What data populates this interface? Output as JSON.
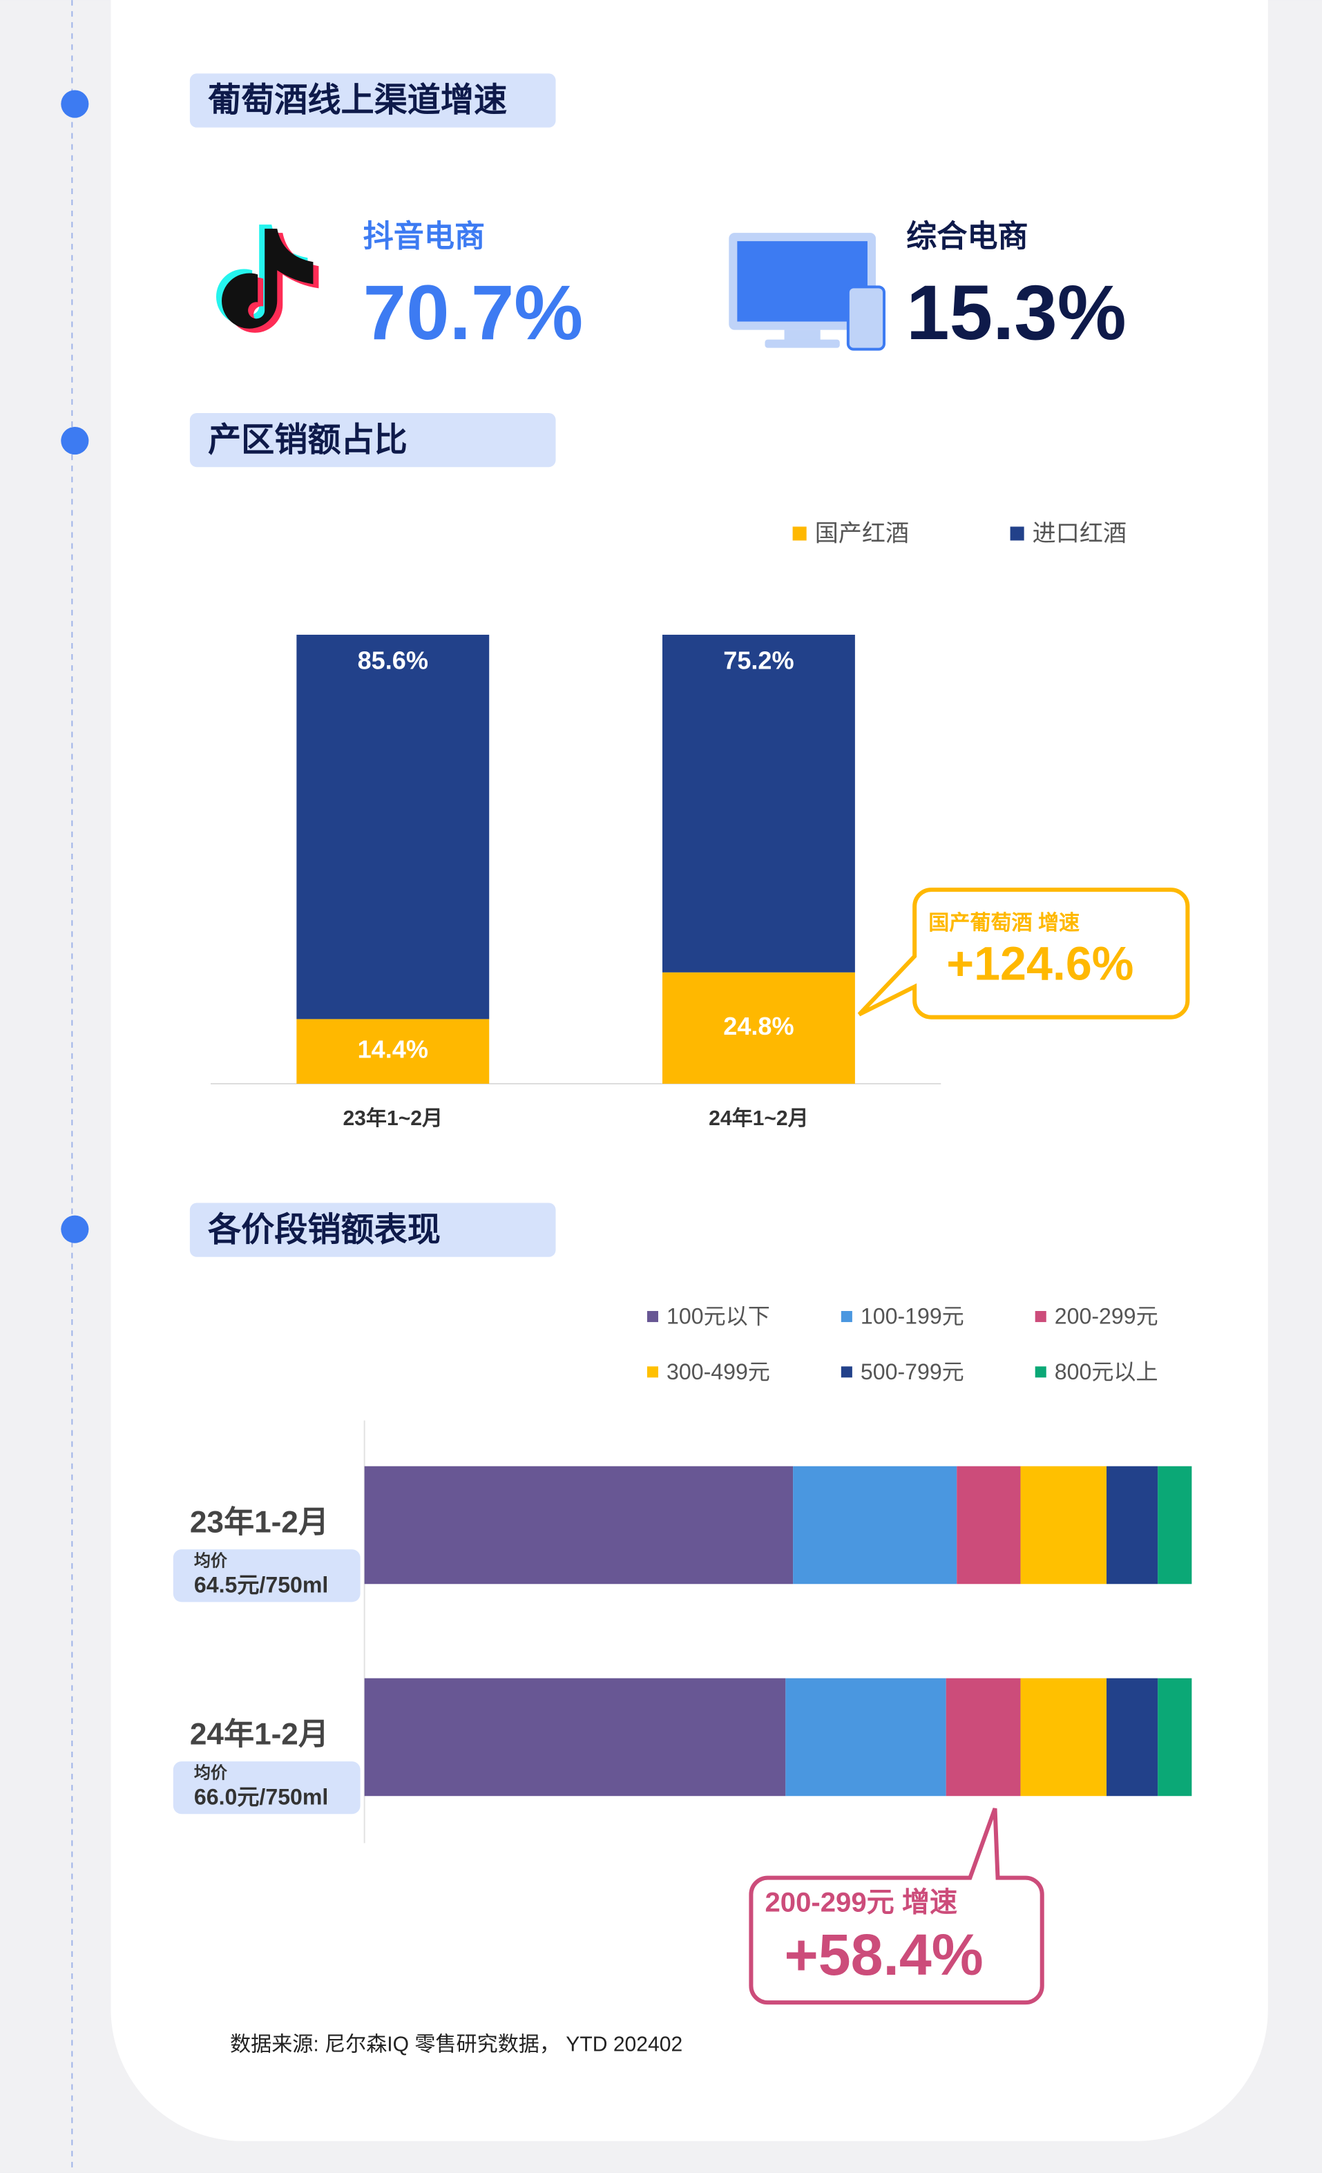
{
  "sections": [
    "葡萄酒线上渠道增速",
    "产区销额占比",
    "各价段销额表现"
  ],
  "channels": [
    {
      "name": "抖音电商",
      "growth": "70.7%"
    },
    {
      "name": "综合电商",
      "growth": "15.3%"
    }
  ],
  "chart_data": [
    {
      "type": "stacked-bar",
      "categories": [
        "23年1~2月",
        "24年1~2月"
      ],
      "series": [
        {
          "name": "国产红酒",
          "color": "#FFB800",
          "values": [
            14.4,
            24.8
          ],
          "value_labels": [
            "14.4%",
            "24.8%"
          ]
        },
        {
          "name": "进口红酒",
          "color": "#22418A",
          "values": [
            85.6,
            75.2
          ],
          "value_labels": [
            "85.6%",
            "75.2%"
          ]
        }
      ],
      "ylim": [
        0,
        100
      ],
      "annotation": {
        "label": "国产葡萄酒 增速",
        "value": "+124.6%",
        "color": "#FFB800"
      }
    },
    {
      "type": "stacked-barh",
      "categories": [
        "23年1-2月",
        "24年1-2月"
      ],
      "avg_price_label": "均价",
      "avg_prices": [
        "64.5元/750ml",
        "66.0元/750ml"
      ],
      "series": [
        {
          "name": "100元以下",
          "color": "#685794",
          "values": [
            51.8,
            50.9
          ]
        },
        {
          "name": "100-199元",
          "color": "#4A97E0",
          "values": [
            19.8,
            19.4
          ]
        },
        {
          "name": "200-299元",
          "color": "#CC4C7A",
          "values": [
            7.7,
            9.0
          ]
        },
        {
          "name": "300-499元",
          "color": "#FFC000",
          "values": [
            10.4,
            10.4
          ]
        },
        {
          "name": "500-799元",
          "color": "#22418A",
          "values": [
            6.2,
            6.2
          ]
        },
        {
          "name": "800元以上",
          "color": "#0BA876",
          "values": [
            4.1,
            4.1
          ]
        }
      ],
      "xlim": [
        0,
        100
      ],
      "annotation": {
        "label": "200-299元 增速",
        "value": "+58.4%",
        "color": "#CC4C7A"
      }
    }
  ],
  "source": "数据来源: 尼尔森IQ 零售研究数据， YTD 202402"
}
